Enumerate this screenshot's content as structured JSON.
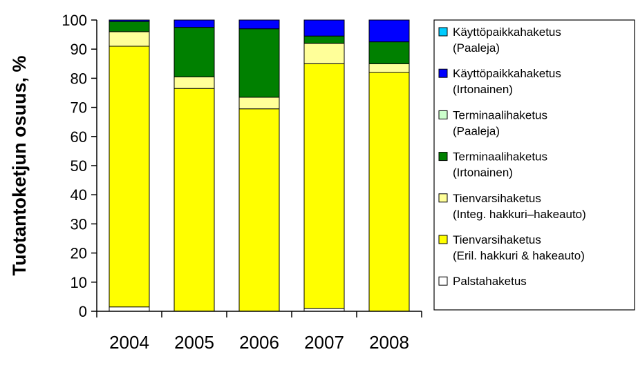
{
  "chart_data": {
    "type": "bar",
    "stacked": true,
    "title": "",
    "xlabel": "",
    "ylabel": "Tuotantoketjun osuus, %",
    "ylim": [
      0,
      100
    ],
    "yticks": [
      0,
      10,
      20,
      30,
      40,
      50,
      60,
      70,
      80,
      90,
      100
    ],
    "grid": false,
    "legend_position": "right",
    "categories": [
      "2004",
      "2005",
      "2006",
      "2007",
      "2008"
    ],
    "series": [
      {
        "name": "Palstahaketus",
        "legend_lines": [
          "Palstahaketus"
        ],
        "color": "#FFFFFF",
        "values": [
          1.5,
          0,
          0,
          1,
          0
        ]
      },
      {
        "name": "Tienvarsihaketus (Eril. hakkuri & hakeauto)",
        "legend_lines": [
          "Tienvarsihaketus",
          "(Eril. hakkuri & hakeauto)"
        ],
        "color": "#FFFF00",
        "values": [
          89.5,
          76.5,
          69.5,
          84,
          82
        ]
      },
      {
        "name": "Tienvarsihaketus (Integ. hakkuri–hakeauto)",
        "legend_lines": [
          "Tienvarsihaketus",
          "(Integ. hakkuri–hakeauto)"
        ],
        "color": "#FFFF99",
        "values": [
          5,
          4,
          4,
          7,
          3
        ]
      },
      {
        "name": "Terminaalihaketus (Irtonainen)",
        "legend_lines": [
          "Terminaalihaketus",
          "(Irtonainen)"
        ],
        "color": "#008000",
        "values": [
          3.5,
          17,
          23.5,
          2.5,
          7.5
        ]
      },
      {
        "name": "Terminaalihaketus (Paaleja)",
        "legend_lines": [
          "Terminaalihaketus",
          "(Paaleja)"
        ],
        "color": "#CCFFCC",
        "values": [
          0,
          0,
          0,
          0,
          0
        ]
      },
      {
        "name": "Käyttöpaikkahaketus (Irtonainen)",
        "legend_lines": [
          "Käyttöpaikkahaketus",
          "(Irtonainen)"
        ],
        "color": "#0000FF",
        "values": [
          0.5,
          2.5,
          3,
          5.5,
          7.5
        ]
      },
      {
        "name": "Käyttöpaikkahaketus (Paaleja)",
        "legend_lines": [
          "Käyttöpaikkahaketus",
          "(Paaleja)"
        ],
        "color": "#00CCFF",
        "values": [
          0,
          0,
          0,
          0,
          0
        ]
      }
    ]
  }
}
